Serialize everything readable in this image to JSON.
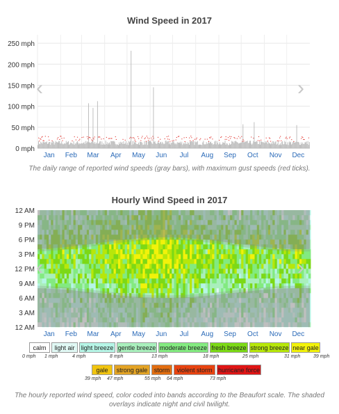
{
  "wind_title": "Wind Speed in 2017",
  "wind_caption": "The daily range of reported wind speeds (gray bars), with maximum gust speeds (red ticks).",
  "hourly_title": "Hourly Wind Speed in 2017",
  "hourly_caption": "The hourly reported wind speed, color coded into bands according to the Beaufort scale. The shaded overlays indicate night and civil twilight.",
  "nav": {
    "prev": "‹",
    "next": "›"
  },
  "chart_data": [
    {
      "type": "bar",
      "title": "Wind Speed in 2017",
      "x_ticks": [
        "Jan",
        "Feb",
        "Mar",
        "Apr",
        "May",
        "Jun",
        "Jul",
        "Aug",
        "Sep",
        "Oct",
        "Nov",
        "Dec"
      ],
      "y_ticks": [
        "0 mph",
        "50 mph",
        "100 mph",
        "150 mph",
        "200 mph",
        "250 mph"
      ],
      "ylim": [
        0,
        270
      ],
      "grid": true,
      "series": [
        {
          "name": "gray bars",
          "color": "#b8b8b8",
          "spikes": [
            {
              "day": 68,
              "max": 107
            },
            {
              "day": 74,
              "max": 96
            },
            {
              "day": 80,
              "max": 112
            },
            {
              "day": 125,
              "max": 232
            },
            {
              "day": 155,
              "max": 145
            },
            {
              "day": 275,
              "max": 57
            },
            {
              "day": 290,
              "max": 62
            },
            {
              "day": 347,
              "max": 55
            }
          ],
          "typical_max": 15
        },
        {
          "name": "red ticks",
          "color": "#e0302a",
          "typical": 22
        }
      ]
    },
    {
      "type": "heatmap",
      "title": "Hourly Wind Speed in 2017",
      "x_ticks": [
        "Jan",
        "Feb",
        "Mar",
        "Apr",
        "May",
        "Jun",
        "Jul",
        "Aug",
        "Sep",
        "Oct",
        "Nov",
        "Dec"
      ],
      "y_ticks": [
        "12 AM",
        "9 PM",
        "6 PM",
        "3 PM",
        "12 PM",
        "9 AM",
        "6 AM",
        "3 AM",
        "12 AM"
      ],
      "bands": [
        {
          "label": "calm",
          "color": "#ffffff",
          "min": "0 mph"
        },
        {
          "label": "light air",
          "color": "#e0f8f4",
          "min": "1 mph"
        },
        {
          "label": "light breeze",
          "color": "#b6f5e6",
          "min": "4 mph"
        },
        {
          "label": "gentle breeze",
          "color": "#a9efbc",
          "min": "8 mph"
        },
        {
          "label": "moderate breeze",
          "color": "#83ea80",
          "min": "13 mph"
        },
        {
          "label": "fresh breeze",
          "color": "#7cd916",
          "min": "18 mph"
        },
        {
          "label": "strong breeze",
          "color": "#b7e70a",
          "min": "25 mph"
        },
        {
          "label": "near gale",
          "color": "#f2f20a",
          "min": "31 mph"
        },
        {
          "label": "gale",
          "color": "#f1c40f",
          "min": "39 mph"
        },
        {
          "label": "strong gale",
          "color": "#e3a324",
          "min": "47 mph"
        },
        {
          "label": "storm",
          "color": "#e36e10",
          "min": "55 mph"
        },
        {
          "label": "violent storm",
          "color": "#e84310",
          "min": "64 mph"
        },
        {
          "label": "hurricane force",
          "color": "#e01515",
          "min": "73 mph"
        }
      ]
    }
  ]
}
